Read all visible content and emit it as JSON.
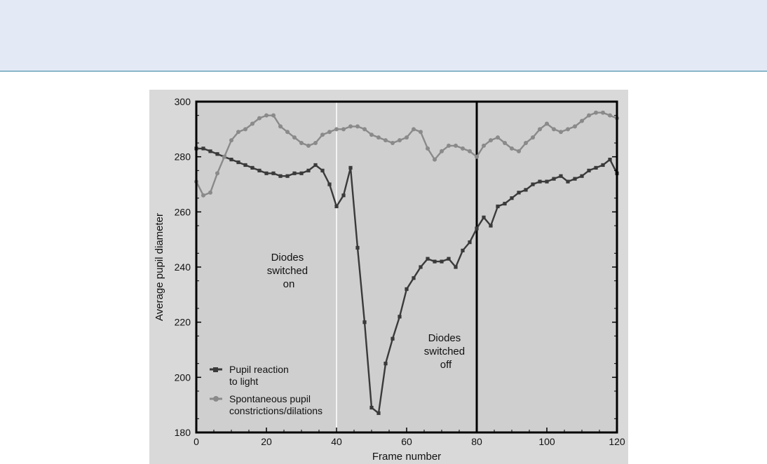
{
  "chart_data": {
    "type": "line",
    "title": "",
    "xlabel": "Frame number",
    "ylabel": "Average pupil diameter",
    "xlim": [
      0,
      120
    ],
    "ylim": [
      180,
      300
    ],
    "xticks": [
      "0",
      "20",
      "40",
      "60",
      "80",
      "100",
      "120"
    ],
    "yticks": [
      "180",
      "200",
      "220",
      "240",
      "260",
      "280",
      "300"
    ],
    "grid": false,
    "legend_position": "bottom-left",
    "series": [
      {
        "name": "Pupil reaction to light",
        "color": "#3a3a3a",
        "x": [
          0,
          2,
          4,
          6,
          8,
          10,
          12,
          14,
          16,
          18,
          20,
          22,
          24,
          26,
          28,
          30,
          32,
          34,
          36,
          38,
          40,
          42,
          44,
          46,
          48,
          50,
          52,
          54,
          56,
          58,
          60,
          62,
          64,
          66,
          68,
          70,
          72,
          74,
          76,
          78,
          80,
          82,
          84,
          86,
          88,
          90,
          92,
          94,
          96,
          98,
          100,
          102,
          104,
          106,
          108,
          110,
          112,
          114,
          116,
          118,
          120
        ],
        "y": [
          283,
          283,
          282,
          281,
          280,
          279,
          278,
          277,
          276,
          275,
          274,
          274,
          273,
          273,
          274,
          274,
          275,
          277,
          275,
          270,
          262,
          266,
          276,
          247,
          220,
          189,
          187,
          205,
          214,
          222,
          232,
          236,
          240,
          243,
          242,
          242,
          243,
          240,
          246,
          249,
          254,
          258,
          255,
          262,
          263,
          265,
          267,
          268,
          270,
          271,
          271,
          272,
          273,
          271,
          272,
          273,
          275,
          276,
          277,
          279,
          274
        ]
      },
      {
        "name": "Spontaneous pupil constrictions/dilations",
        "color": "#8a8a8a",
        "x": [
          0,
          2,
          4,
          6,
          8,
          10,
          12,
          14,
          16,
          18,
          20,
          22,
          24,
          26,
          28,
          30,
          32,
          34,
          36,
          38,
          40,
          42,
          44,
          46,
          48,
          50,
          52,
          54,
          56,
          58,
          60,
          62,
          64,
          66,
          68,
          70,
          72,
          74,
          76,
          78,
          80,
          82,
          84,
          86,
          88,
          90,
          92,
          94,
          96,
          98,
          100,
          102,
          104,
          106,
          108,
          110,
          112,
          114,
          116,
          118,
          120
        ],
        "y": [
          271,
          266,
          267,
          274,
          280,
          286,
          289,
          290,
          292,
          294,
          295,
          295,
          291,
          289,
          287,
          285,
          284,
          285,
          288,
          289,
          290,
          290,
          291,
          291,
          290,
          288,
          287,
          286,
          285,
          286,
          287,
          290,
          289,
          283,
          279,
          282,
          284,
          284,
          283,
          282,
          280,
          284,
          286,
          287,
          285,
          283,
          282,
          285,
          287,
          290,
          292,
          290,
          289,
          290,
          291,
          293,
          295,
          296,
          296,
          295,
          294
        ]
      }
    ],
    "annotations": [
      {
        "x": 40,
        "lines": [
          "Diodes",
          "switched",
          "on"
        ]
      },
      {
        "x": 80,
        "lines": [
          "Diodes",
          "switched",
          "off"
        ]
      }
    ]
  }
}
